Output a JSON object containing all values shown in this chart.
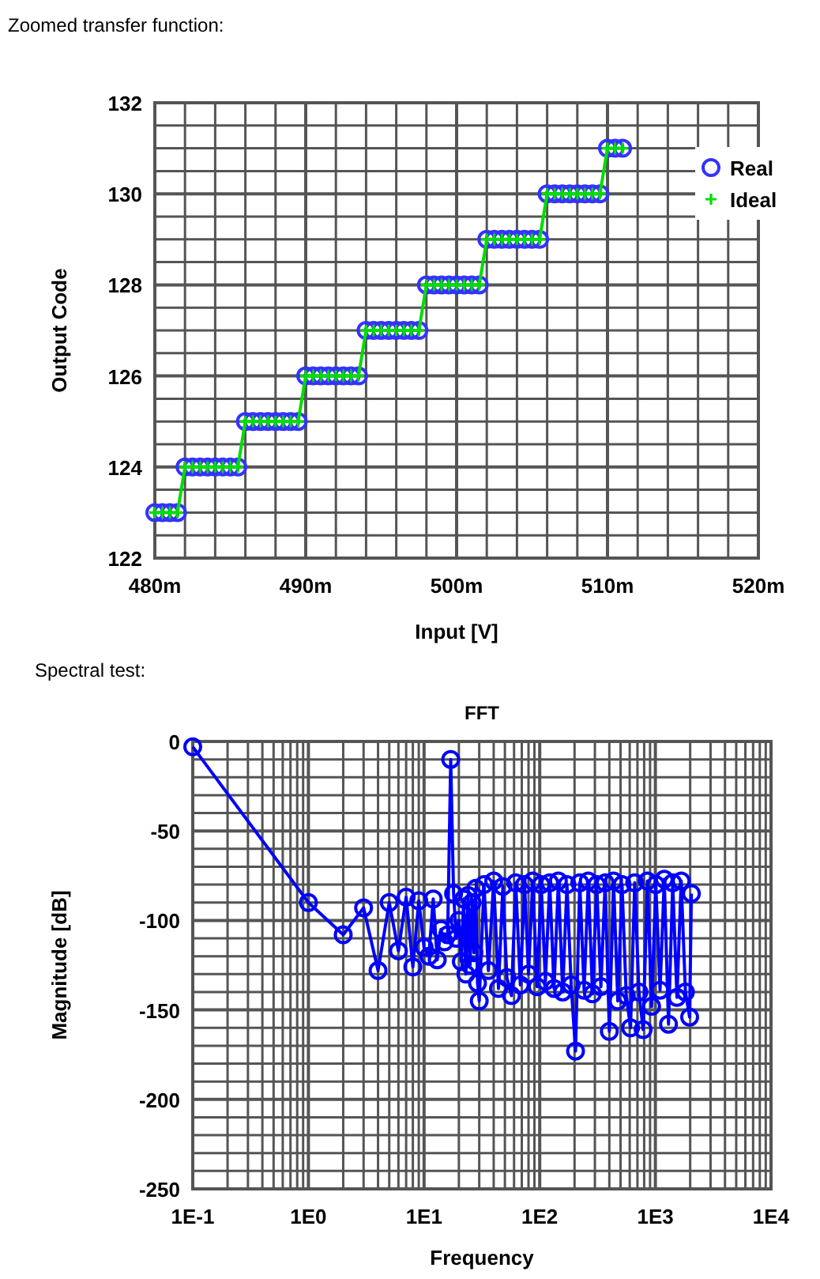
{
  "chart_data": [
    {
      "type": "line",
      "title": "Zoomed transfer function:",
      "xlabel": "Input [V]",
      "ylabel": "Output Code",
      "grid": true,
      "legend": "top right",
      "xlim": [
        480,
        520
      ],
      "ylim": [
        122,
        132
      ],
      "xticks": [
        {
          "value": 480,
          "label": "480m"
        },
        {
          "value": 482,
          "label": null
        },
        {
          "value": 484,
          "label": null
        },
        {
          "value": 486,
          "label": null
        },
        {
          "value": 488,
          "label": null
        },
        {
          "value": 490,
          "label": "490m"
        },
        {
          "value": 492,
          "label": null
        },
        {
          "value": 494,
          "label": null
        },
        {
          "value": 496,
          "label": null
        },
        {
          "value": 498,
          "label": null
        },
        {
          "value": 500,
          "label": "500m"
        },
        {
          "value": 502,
          "label": null
        },
        {
          "value": 504,
          "label": null
        },
        {
          "value": 506,
          "label": null
        },
        {
          "value": 508,
          "label": null
        },
        {
          "value": 510,
          "label": "510m"
        },
        {
          "value": 512,
          "label": null
        },
        {
          "value": 514,
          "label": null
        },
        {
          "value": 516,
          "label": null
        },
        {
          "value": 518,
          "label": null
        },
        {
          "value": 520,
          "label": "520m"
        }
      ],
      "yticks": [
        122,
        {
          "value": 122.5,
          "label": null
        },
        {
          "value": 123,
          "label": null
        },
        {
          "value": 123.5,
          "label": null
        },
        124,
        {
          "value": 124.5,
          "label": null
        },
        {
          "value": 125,
          "label": null
        },
        {
          "value": 125.5,
          "label": null
        },
        126,
        {
          "value": 126.5,
          "label": null
        },
        {
          "value": 127,
          "label": null
        },
        {
          "value": 127.5,
          "label": null
        },
        128,
        {
          "value": 128.5,
          "label": null
        },
        {
          "value": 129,
          "label": null
        },
        {
          "value": 129.5,
          "label": null
        },
        130,
        {
          "value": 130.5,
          "label": null
        },
        {
          "value": 131,
          "label": null
        },
        {
          "value": 131.5,
          "label": null
        },
        132
      ],
      "x": [
        480,
        480.5,
        481,
        481.5,
        482,
        482.5,
        483,
        483.5,
        484,
        484.5,
        485,
        485.5,
        486,
        486.5,
        487,
        487.5,
        488,
        488.5,
        489,
        489.5,
        490,
        490.5,
        491,
        491.5,
        492,
        492.5,
        493,
        493.5,
        494,
        494.5,
        495,
        495.5,
        496,
        496.5,
        497,
        497.5,
        498,
        498.5,
        499,
        499.5,
        500,
        500.5,
        501,
        501.5,
        502,
        502.5,
        503,
        503.5,
        504,
        504.5,
        505,
        505.5,
        506,
        506.5,
        507,
        507.5,
        508,
        508.5,
        509,
        509.5,
        510,
        510.5,
        511
      ],
      "series": [
        {
          "name": "Real",
          "type": "scatter",
          "marker": "circle",
          "color": "#3333ff",
          "values": [
            123,
            123,
            123,
            123,
            124,
            124,
            124,
            124,
            124,
            124,
            124,
            124,
            125,
            125,
            125,
            125,
            125,
            125,
            125,
            125,
            126,
            126,
            126,
            126,
            126,
            126,
            126,
            126,
            127,
            127,
            127,
            127,
            127,
            127,
            127,
            127,
            128,
            128,
            128,
            128,
            128,
            128,
            128,
            128,
            129,
            129,
            129,
            129,
            129,
            129,
            129,
            129,
            130,
            130,
            130,
            130,
            130,
            130,
            130,
            130,
            131,
            131,
            131
          ]
        },
        {
          "name": "Ideal",
          "marker": "cross",
          "color": "#00dd00",
          "values": [
            123,
            123,
            123,
            123,
            124,
            124,
            124,
            124,
            124,
            124,
            124,
            124,
            125,
            125,
            125,
            125,
            125,
            125,
            125,
            125,
            126,
            126,
            126,
            126,
            126,
            126,
            126,
            126,
            127,
            127,
            127,
            127,
            127,
            127,
            127,
            127,
            128,
            128,
            128,
            128,
            128,
            128,
            128,
            128,
            129,
            129,
            129,
            129,
            129,
            129,
            129,
            129,
            130,
            130,
            130,
            130,
            130,
            130,
            130,
            130,
            131,
            131,
            131
          ]
        }
      ]
    },
    {
      "type": "line",
      "title": "FFT",
      "annotations": [
        "Spectral test:"
      ],
      "xlabel": "Frequency",
      "ylabel": "Magnitude [dB]",
      "grid": true,
      "log": "x",
      "marker": "circle",
      "xlim": [
        0.1,
        10000
      ],
      "ylim": [
        -250,
        0
      ],
      "xticks": [
        {
          "value": 0.1,
          "label": "1E-1"
        },
        {
          "value": 0.2,
          "label": null
        },
        {
          "value": 0.3,
          "label": null
        },
        {
          "value": 0.4,
          "label": null
        },
        {
          "value": 0.5,
          "label": null
        },
        {
          "value": 0.6,
          "label": null
        },
        {
          "value": 0.7,
          "label": null
        },
        {
          "value": 0.8,
          "label": null
        },
        {
          "value": 0.9,
          "label": null
        },
        {
          "value": 1,
          "label": "1E0"
        },
        {
          "value": 2,
          "label": null
        },
        {
          "value": 3,
          "label": null
        },
        {
          "value": 4,
          "label": null
        },
        {
          "value": 5,
          "label": null
        },
        {
          "value": 6,
          "label": null
        },
        {
          "value": 7,
          "label": null
        },
        {
          "value": 8,
          "label": null
        },
        {
          "value": 9,
          "label": null
        },
        {
          "value": 10,
          "label": "1E1"
        },
        {
          "value": 20,
          "label": null
        },
        {
          "value": 30,
          "label": null
        },
        {
          "value": 40,
          "label": null
        },
        {
          "value": 50,
          "label": null
        },
        {
          "value": 60,
          "label": null
        },
        {
          "value": 70,
          "label": null
        },
        {
          "value": 80,
          "label": null
        },
        {
          "value": 90,
          "label": null
        },
        {
          "value": 100,
          "label": "1E2"
        },
        {
          "value": 200,
          "label": null
        },
        {
          "value": 300,
          "label": null
        },
        {
          "value": 400,
          "label": null
        },
        {
          "value": 500,
          "label": null
        },
        {
          "value": 600,
          "label": null
        },
        {
          "value": 700,
          "label": null
        },
        {
          "value": 800,
          "label": null
        },
        {
          "value": 900,
          "label": null
        },
        {
          "value": 1000,
          "label": "1E3"
        },
        {
          "value": 2000,
          "label": null
        },
        {
          "value": 3000,
          "label": null
        },
        {
          "value": 4000,
          "label": null
        },
        {
          "value": 5000,
          "label": null
        },
        {
          "value": 6000,
          "label": null
        },
        {
          "value": 7000,
          "label": null
        },
        {
          "value": 8000,
          "label": null
        },
        {
          "value": 9000,
          "label": null
        },
        {
          "value": 10000,
          "label": "1E4"
        }
      ],
      "yticks": [
        0,
        {
          "value": -10,
          "label": null
        },
        {
          "value": -20,
          "label": null
        },
        {
          "value": -30,
          "label": null
        },
        {
          "value": -40,
          "label": null
        },
        -50,
        {
          "value": -60,
          "label": null
        },
        {
          "value": -70,
          "label": null
        },
        {
          "value": -80,
          "label": null
        },
        {
          "value": -90,
          "label": null
        },
        -100,
        {
          "value": -110,
          "label": null
        },
        {
          "value": -120,
          "label": null
        },
        {
          "value": -130,
          "label": null
        },
        {
          "value": -140,
          "label": null
        },
        -150,
        {
          "value": -160,
          "label": null
        },
        {
          "value": -170,
          "label": null
        },
        {
          "value": -180,
          "label": null
        },
        {
          "value": -190,
          "label": null
        },
        -200,
        {
          "value": -210,
          "label": null
        },
        {
          "value": -220,
          "label": null
        },
        {
          "value": -230,
          "label": null
        },
        {
          "value": -240,
          "label": null
        },
        -250
      ],
      "x": [
        0.1,
        1,
        2,
        3,
        4,
        5,
        6,
        7,
        8,
        9,
        10,
        11,
        12,
        13,
        14,
        15,
        16,
        17,
        18,
        19,
        20,
        21,
        22,
        23,
        24,
        25,
        26,
        27,
        28,
        29,
        30,
        33,
        36,
        40,
        44,
        48,
        52,
        57,
        62,
        68,
        74,
        80,
        87,
        95,
        103,
        112,
        122,
        133,
        145,
        158,
        172,
        187,
        204,
        222,
        242,
        263,
        286,
        311,
        338,
        368,
        400,
        435,
        473,
        515,
        560,
        610,
        663,
        721,
        784,
        853,
        928,
        1009,
        1098,
        1194,
        1299,
        1413,
        1537,
        1672,
        1819,
        1978,
        2048
      ],
      "series": [
        {
          "color": "#0000ff",
          "values": [
            -3,
            -90,
            -108,
            -93,
            -128,
            -90,
            -117,
            -87,
            -126,
            -89,
            -115,
            -120,
            -88,
            -122,
            -105,
            -112,
            -108,
            -10,
            -85,
            -110,
            -100,
            -123,
            -88,
            -130,
            -86,
            -125,
            -90,
            -118,
            -82,
            -135,
            -145,
            -80,
            -128,
            -78,
            -138,
            -81,
            -132,
            -142,
            -79,
            -136,
            -80,
            -130,
            -78,
            -137,
            -80,
            -134,
            -79,
            -138,
            -78,
            -140,
            -80,
            -136,
            -173,
            -79,
            -139,
            -78,
            -141,
            -80,
            -137,
            -79,
            -162,
            -78,
            -145,
            -80,
            -142,
            -160,
            -79,
            -140,
            -161,
            -78,
            -148,
            -80,
            -139,
            -77,
            -158,
            -79,
            -143,
            -78,
            -140,
            -154,
            -85
          ]
        }
      ]
    }
  ]
}
